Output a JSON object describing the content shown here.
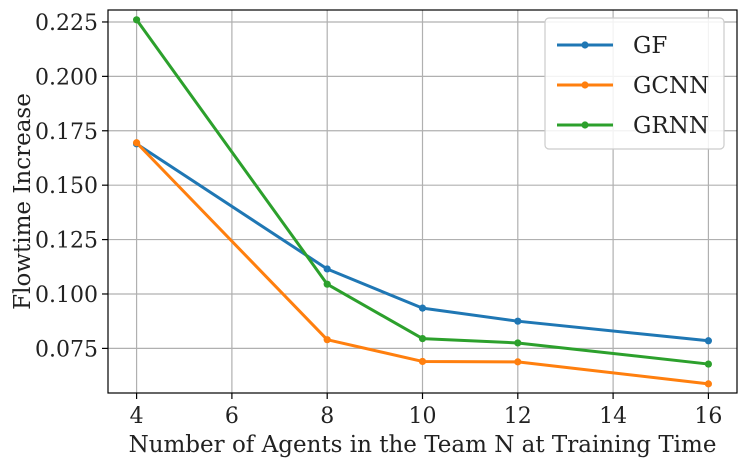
{
  "chart_data": {
    "type": "line",
    "xlabel": "Number of Agents in the Team N at Training Time",
    "ylabel": "Flowtime Increase",
    "x": [
      4,
      8,
      10,
      12,
      16
    ],
    "xlim": [
      3.4,
      16.6
    ],
    "ylim": [
      0.0545,
      0.2305
    ],
    "xticks": [
      "4",
      "6",
      "8",
      "10",
      "12",
      "14",
      "16"
    ],
    "yticks": [
      "0.075",
      "0.100",
      "0.125",
      "0.150",
      "0.175",
      "0.200",
      "0.225"
    ],
    "grid": true,
    "legend_position": "top-right",
    "series": [
      {
        "name": "GF",
        "color": "#1f77b4",
        "values": [
          0.169,
          0.1115,
          0.0935,
          0.0875,
          0.0785
        ]
      },
      {
        "name": "GCNN",
        "color": "#ff7f0e",
        "values": [
          0.1695,
          0.079,
          0.069,
          0.0688,
          0.0587
        ]
      },
      {
        "name": "GRNN",
        "color": "#2ca02c",
        "values": [
          0.226,
          0.1045,
          0.0795,
          0.0775,
          0.0678
        ]
      }
    ]
  }
}
